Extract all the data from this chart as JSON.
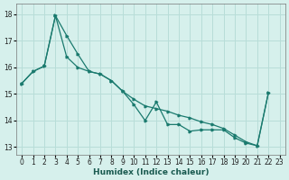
{
  "xlabel": "Humidex (Indice chaleur)",
  "bg_color": "#d6f0ec",
  "grid_color": "#b8ddd8",
  "line_color": "#1a7a6e",
  "xlim": [
    -0.5,
    23.5
  ],
  "ylim": [
    12.7,
    18.4
  ],
  "xticks": [
    0,
    1,
    2,
    3,
    4,
    5,
    6,
    7,
    8,
    9,
    10,
    11,
    12,
    13,
    14,
    15,
    16,
    17,
    18,
    19,
    20,
    21,
    22,
    23
  ],
  "yticks": [
    13,
    14,
    15,
    16,
    17,
    18
  ],
  "series1_x": [
    0,
    1,
    2,
    3,
    4,
    5,
    6,
    7,
    8,
    9,
    10,
    11,
    12,
    13,
    14,
    15,
    16,
    17,
    18,
    19,
    20,
    21,
    22
  ],
  "series1_y": [
    15.4,
    15.85,
    16.05,
    17.95,
    17.2,
    16.5,
    15.85,
    15.75,
    15.5,
    15.1,
    14.8,
    14.55,
    14.45,
    14.35,
    14.2,
    14.1,
    13.95,
    13.85,
    13.7,
    13.45,
    13.2,
    13.05,
    15.05
  ],
  "series2_x": [
    0,
    1,
    2,
    3,
    4,
    5,
    6,
    7,
    8,
    9,
    10,
    11,
    12,
    13,
    14,
    15,
    16,
    17,
    18,
    19,
    20,
    21,
    22
  ],
  "series2_y": [
    15.4,
    15.85,
    16.05,
    17.95,
    16.4,
    16.0,
    15.85,
    15.75,
    15.5,
    15.1,
    14.6,
    14.0,
    14.7,
    13.85,
    13.85,
    13.6,
    13.65,
    13.65,
    13.65,
    13.35,
    13.15,
    13.05,
    15.05
  ]
}
